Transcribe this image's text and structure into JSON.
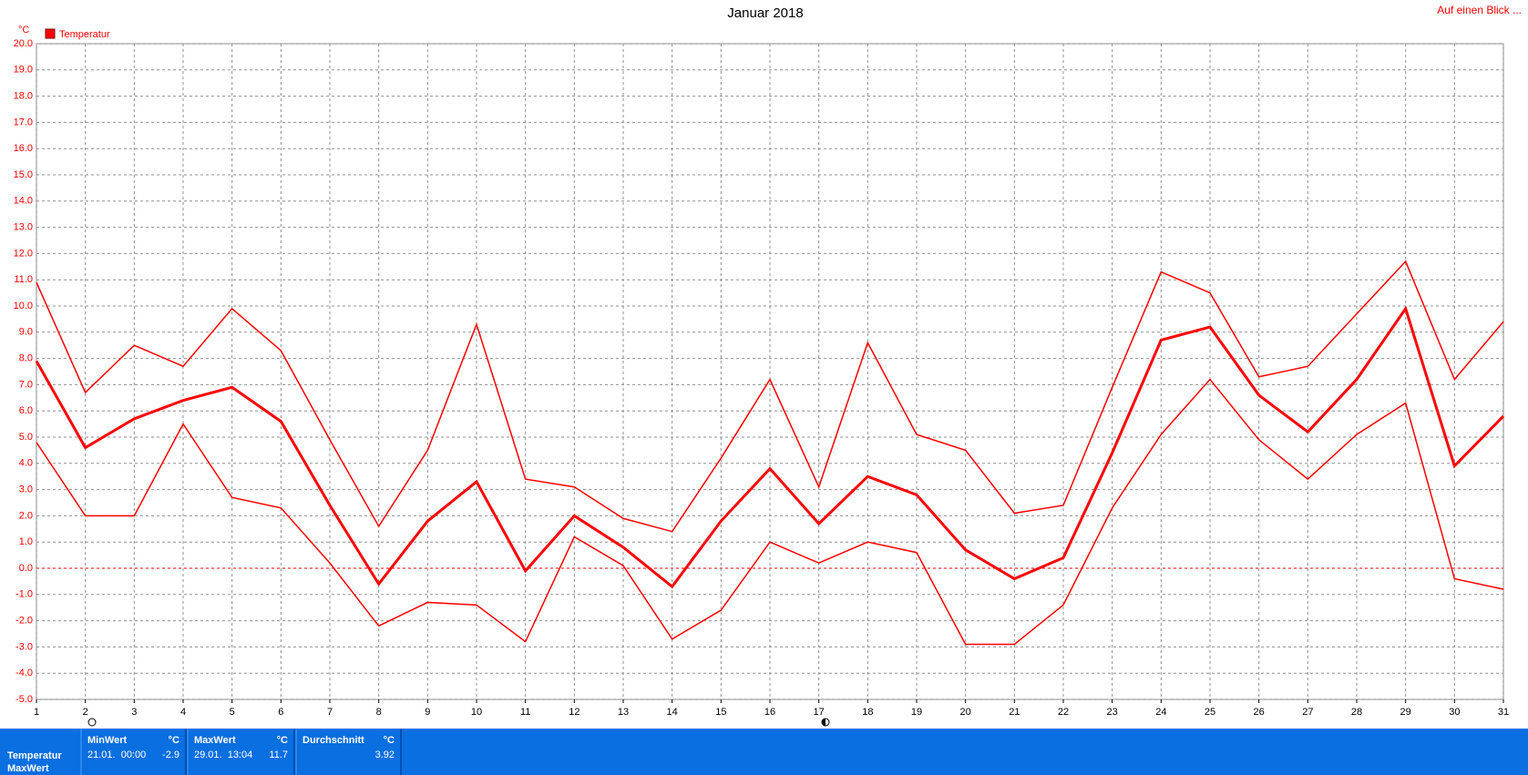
{
  "chart_data": {
    "type": "line",
    "title": "Januar 2018",
    "y_unit": "°C",
    "legend_label": "Temperatur",
    "link": "Auf einen Blick ...",
    "x": [
      1,
      2,
      3,
      4,
      5,
      6,
      7,
      8,
      9,
      10,
      11,
      12,
      13,
      14,
      15,
      16,
      17,
      18,
      19,
      20,
      21,
      22,
      23,
      24,
      25,
      26,
      27,
      28,
      29,
      30,
      31
    ],
    "xlim": [
      1,
      31
    ],
    "xticks": [
      1,
      2,
      3,
      4,
      5,
      6,
      7,
      8,
      9,
      10,
      11,
      12,
      13,
      14,
      15,
      16,
      17,
      18,
      19,
      20,
      21,
      22,
      23,
      24,
      25,
      26,
      27,
      28,
      29,
      30,
      31
    ],
    "ylim": [
      -5,
      20
    ],
    "yticks": [
      {
        "value": -5,
        "label": "-5.0"
      },
      {
        "value": -4,
        "label": "-4.0"
      },
      {
        "value": -3,
        "label": "-3.0"
      },
      {
        "value": -2,
        "label": "-2.0"
      },
      {
        "value": -1,
        "label": "-1.0"
      },
      {
        "value": 0,
        "label": "0.0"
      },
      {
        "value": 1,
        "label": "1.0"
      },
      {
        "value": 2,
        "label": "2.0"
      },
      {
        "value": 3,
        "label": "3.0"
      },
      {
        "value": 4,
        "label": "4.0"
      },
      {
        "value": 5,
        "label": "5.0"
      },
      {
        "value": 6,
        "label": "6.0"
      },
      {
        "value": 7,
        "label": "7.0"
      },
      {
        "value": 8,
        "label": "8.0"
      },
      {
        "value": 9,
        "label": "9.0"
      },
      {
        "value": 10,
        "label": "10.0"
      },
      {
        "value": 11,
        "label": "11.0"
      },
      {
        "value": 12,
        "label": "12.0"
      },
      {
        "value": 13,
        "label": "13.0"
      },
      {
        "value": 14,
        "label": "14.0"
      },
      {
        "value": 15,
        "label": "15.0"
      },
      {
        "value": 16,
        "label": "16.0"
      },
      {
        "value": 17,
        "label": "17.0"
      },
      {
        "value": 18,
        "label": "18.0"
      },
      {
        "value": 19,
        "label": "19.0"
      },
      {
        "value": 20,
        "label": "20.0"
      }
    ],
    "grid": true,
    "series": [
      {
        "color": "#ff0000",
        "values": [
          10.9,
          6.7,
          8.5,
          7.7,
          9.9,
          8.3,
          4.9,
          1.6,
          4.5,
          9.3,
          3.4,
          3.1,
          1.9,
          1.4,
          4.2,
          7.2,
          3.1,
          8.6,
          5.1,
          4.5,
          2.1,
          2.4,
          6.9,
          11.3,
          10.5,
          7.3,
          7.7,
          9.7,
          11.7,
          7.2,
          9.4
        ]
      },
      {
        "color": "#ff0000",
        "values": [
          7.9,
          4.6,
          5.7,
          6.4,
          6.9,
          5.6,
          2.4,
          -0.6,
          1.8,
          3.3,
          -0.1,
          2.0,
          0.8,
          -0.7,
          1.8,
          3.8,
          1.7,
          3.5,
          2.8,
          0.7,
          -0.4,
          0.4,
          4.4,
          8.7,
          9.2,
          6.6,
          5.2,
          7.2,
          9.9,
          3.9,
          5.8
        ]
      },
      {
        "color": "#ff0000",
        "values": [
          4.8,
          2.0,
          2.0,
          5.5,
          2.7,
          2.3,
          0.2,
          -2.2,
          -1.3,
          -1.4,
          -2.8,
          1.2,
          0.1,
          -2.7,
          -1.6,
          1.0,
          0.2,
          1.0,
          0.6,
          -2.9,
          -2.9,
          -1.4,
          2.3,
          5.1,
          7.2,
          4.9,
          3.4,
          5.1,
          6.3,
          -0.4,
          -0.8
        ]
      }
    ]
  },
  "table": {
    "headers": [
      {
        "name": "MinWert",
        "unit": "°C"
      },
      {
        "name": "MaxWert",
        "unit": "°C"
      },
      {
        "name": "Durchschnitt",
        "unit": "°C"
      }
    ],
    "rows": [
      [
        "Temperatur",
        "21.01.  00:00",
        "-2.9",
        "29.01.  13:04",
        "11.7",
        "3.92"
      ],
      [
        "MaxWert"
      ]
    ]
  }
}
